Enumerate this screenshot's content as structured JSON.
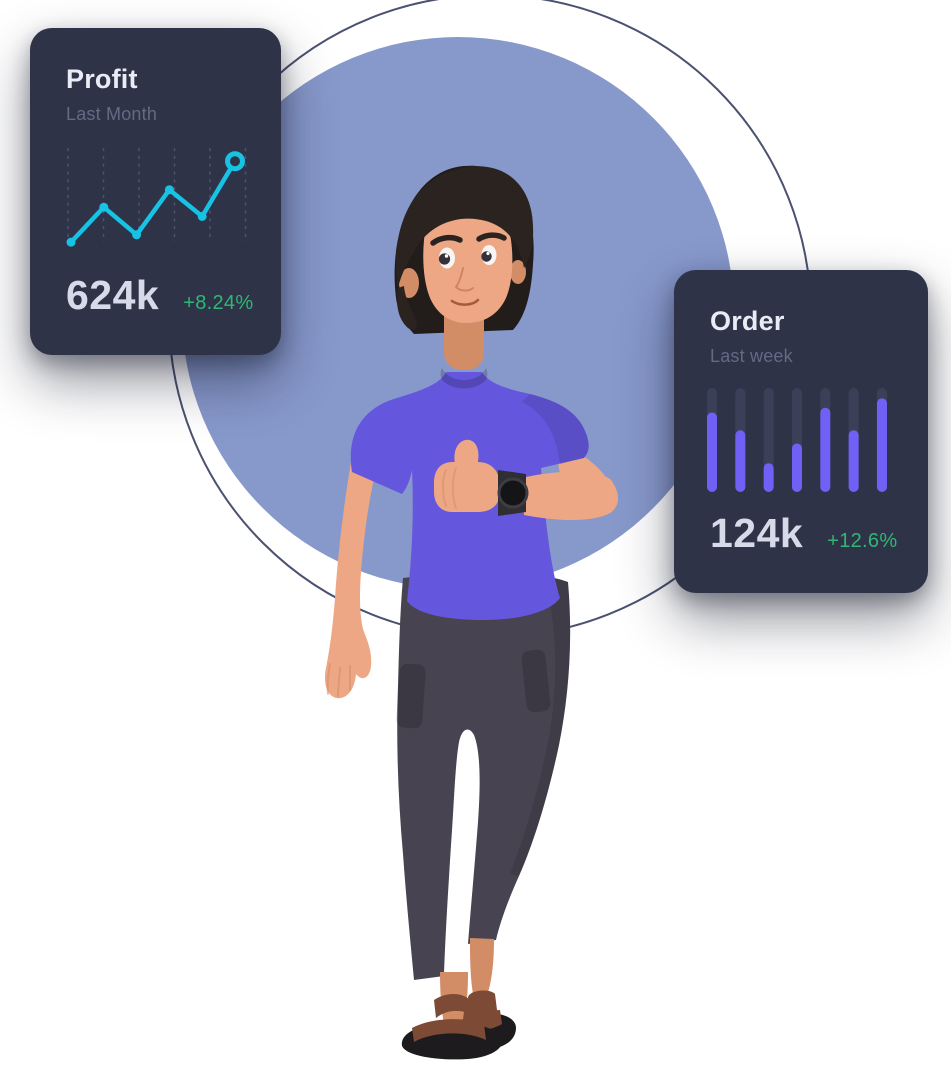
{
  "page": {
    "background": "#ffffff"
  },
  "backdrop": {
    "circle_color": "#8798cb",
    "ring_color": "#4b5170"
  },
  "cards": {
    "profit": {
      "title": "Profit",
      "subtitle": "Last Month",
      "value": "624k",
      "change": "+8.24%"
    },
    "order": {
      "title": "Order",
      "subtitle": "Last week",
      "value": "124k",
      "change": "+12.6%"
    }
  },
  "colors": {
    "page-bg": "#ffffff",
    "card-bg": "#2e3348",
    "card-title": "#e9ebf5",
    "card-subtitle": "#636a84",
    "card-value": "#d7dbe9",
    "positive-green": "#2eb873",
    "line-cyan": "#17c2e4",
    "grid-dash": "#4b5270",
    "bar-purple": "#6f61f5",
    "bar-track": "#3b4058",
    "circle-fill": "#8798cb",
    "ring-stroke": "#4b5170",
    "skin": "#eda784",
    "skin-dark": "#d28c66",
    "hair": "#2b2320",
    "hair-dark": "#221c1a",
    "shirt": "#6557dd",
    "pants": "#474350",
    "sandal": "#7d4a36",
    "sole": "#1d1b1e",
    "watch-strap": "#2e2e33",
    "watch-face": "#151518"
  },
  "chart_data": [
    {
      "type": "line",
      "title": "Profit",
      "subtitle": "Last Month",
      "x": [
        1,
        2,
        3,
        4,
        5,
        6
      ],
      "values": [
        2,
        40,
        10,
        59,
        30,
        90
      ],
      "ylim": [
        0,
        100
      ],
      "grid": "vertical-dashed",
      "last_point_style": "open-ring",
      "line_color": "#17c2e4",
      "summary_value": "624k",
      "change_percent": "+8.24%"
    },
    {
      "type": "bar",
      "title": "Order",
      "subtitle": "Last week",
      "categories": [
        "1",
        "2",
        "3",
        "4",
        "5",
        "6",
        "7"
      ],
      "values": [
        74,
        55,
        20,
        41,
        79,
        55,
        89
      ],
      "ylim": [
        0,
        100
      ],
      "bar_color": "#6f61f5",
      "track_color": "#3b4058",
      "summary_value": "124k",
      "change_percent": "+12.6%"
    }
  ]
}
